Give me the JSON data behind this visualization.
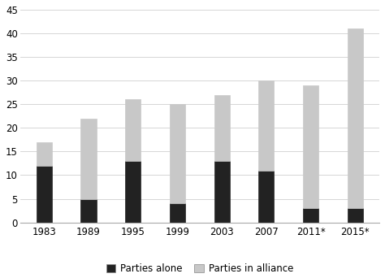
{
  "categories": [
    "1983",
    "1989",
    "1995",
    "1999",
    "2003",
    "2007",
    "2011*",
    "2015*"
  ],
  "parties_alone": [
    12,
    5,
    13,
    4,
    13,
    11,
    3,
    3
  ],
  "parties_in_alliance": [
    5,
    17,
    13,
    21,
    14,
    19,
    26,
    38
  ],
  "color_alone": "#222222",
  "color_alliance": "#c8c8c8",
  "legend_alone": "Parties alone",
  "legend_alliance": "Parties in alliance",
  "ylim": [
    0,
    45
  ],
  "yticks": [
    0,
    5,
    10,
    15,
    20,
    25,
    30,
    35,
    40,
    45
  ],
  "background_color": "#ffffff",
  "bar_width": 0.35,
  "edge_color": "#444444"
}
